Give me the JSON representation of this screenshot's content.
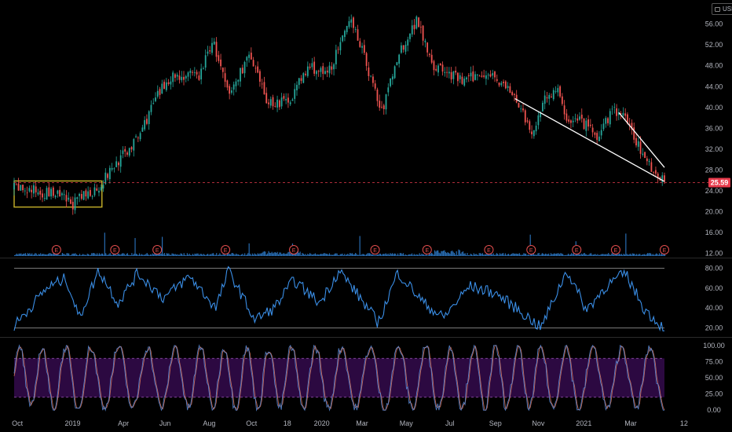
{
  "header": {
    "currency_label": "USD"
  },
  "colors": {
    "background": "#000000",
    "up_candle": "#26a69a",
    "down_candle": "#ef5350",
    "volume": "#2f7fd0",
    "rsi_line": "#3a8ee6",
    "stoch_k": "#5b8fe0",
    "stoch_d": "#e07a5f",
    "stoch_band": "#2e0a44",
    "price_line": "#e83b4c",
    "trendline": "#ffffff",
    "box": "#c8b22a",
    "earnings": "#e24d4d"
  },
  "chart_data": [
    {
      "type": "candlestick",
      "title": "",
      "y_axis_ticks": [
        12.0,
        16.0,
        20.0,
        24.0,
        28.0,
        32.0,
        36.0,
        40.0,
        44.0,
        48.0,
        52.0,
        56.0
      ],
      "ylim": [
        11.5,
        58.5
      ],
      "x_tick_labels": [
        "Oct",
        "2019",
        "Apr",
        "Jun",
        "Aug",
        "Oct",
        "18",
        "2020",
        "Mar",
        "May",
        "Jul",
        "Sep",
        "Nov",
        "2021",
        "Mar",
        "12"
      ],
      "last_price": 25.59,
      "last_price_label": "25.59",
      "earnings_label": "E",
      "earnings_marker_count": 12,
      "key_closes": [
        {
          "t": 0,
          "v": 24.5
        },
        {
          "t": 0.06,
          "v": 23.5
        },
        {
          "t": 0.09,
          "v": 21.5
        },
        {
          "t": 0.13,
          "v": 24.8
        },
        {
          "t": 0.155,
          "v": 29
        },
        {
          "t": 0.19,
          "v": 34
        },
        {
          "t": 0.215,
          "v": 41
        },
        {
          "t": 0.24,
          "v": 46
        },
        {
          "t": 0.285,
          "v": 46
        },
        {
          "t": 0.305,
          "v": 53
        },
        {
          "t": 0.33,
          "v": 42
        },
        {
          "t": 0.36,
          "v": 50
        },
        {
          "t": 0.39,
          "v": 41
        },
        {
          "t": 0.42,
          "v": 41
        },
        {
          "t": 0.455,
          "v": 48
        },
        {
          "t": 0.48,
          "v": 46
        },
        {
          "t": 0.52,
          "v": 57
        },
        {
          "t": 0.54,
          "v": 49
        },
        {
          "t": 0.565,
          "v": 39
        },
        {
          "t": 0.59,
          "v": 50
        },
        {
          "t": 0.62,
          "v": 57
        },
        {
          "t": 0.645,
          "v": 48
        },
        {
          "t": 0.69,
          "v": 45
        },
        {
          "t": 0.73,
          "v": 47
        },
        {
          "t": 0.755,
          "v": 44
        },
        {
          "t": 0.78,
          "v": 40
        },
        {
          "t": 0.795,
          "v": 34
        },
        {
          "t": 0.815,
          "v": 42
        },
        {
          "t": 0.835,
          "v": 43
        },
        {
          "t": 0.85,
          "v": 38
        },
        {
          "t": 0.875,
          "v": 37
        },
        {
          "t": 0.9,
          "v": 34
        },
        {
          "t": 0.92,
          "v": 40
        },
        {
          "t": 0.945,
          "v": 37
        },
        {
          "t": 0.97,
          "v": 30
        },
        {
          "t": 1,
          "v": 25.6
        }
      ],
      "trendlines": [
        {
          "from": {
            "t": 0.77,
            "v": 41.7
          },
          "to": {
            "t": 1,
            "v": 25.8
          }
        },
        {
          "from": {
            "t": 0.93,
            "v": 39
          },
          "to": {
            "t": 1,
            "v": 28.5
          }
        }
      ],
      "consolidation_box": {
        "t0": 0.0,
        "t1": 0.135,
        "v0": 20.9,
        "v1": 25.9
      }
    },
    {
      "type": "line",
      "title": "",
      "y_axis_ticks": [
        20.0,
        40.0,
        60.0,
        80.0
      ],
      "ylim": [
        14,
        86
      ],
      "reference_lines": [
        80,
        20
      ],
      "key_values": [
        {
          "t": 0,
          "v": 22
        },
        {
          "t": 0.05,
          "v": 60
        },
        {
          "t": 0.08,
          "v": 70
        },
        {
          "t": 0.1,
          "v": 30
        },
        {
          "t": 0.13,
          "v": 78
        },
        {
          "t": 0.16,
          "v": 45
        },
        {
          "t": 0.19,
          "v": 75
        },
        {
          "t": 0.23,
          "v": 50
        },
        {
          "t": 0.27,
          "v": 72
        },
        {
          "t": 0.31,
          "v": 40
        },
        {
          "t": 0.33,
          "v": 78
        },
        {
          "t": 0.37,
          "v": 28
        },
        {
          "t": 0.4,
          "v": 40
        },
        {
          "t": 0.43,
          "v": 68
        },
        {
          "t": 0.47,
          "v": 45
        },
        {
          "t": 0.5,
          "v": 78
        },
        {
          "t": 0.53,
          "v": 52
        },
        {
          "t": 0.56,
          "v": 25
        },
        {
          "t": 0.59,
          "v": 76
        },
        {
          "t": 0.63,
          "v": 45
        },
        {
          "t": 0.66,
          "v": 30
        },
        {
          "t": 0.7,
          "v": 62
        },
        {
          "t": 0.74,
          "v": 55
        },
        {
          "t": 0.78,
          "v": 36
        },
        {
          "t": 0.81,
          "v": 20
        },
        {
          "t": 0.85,
          "v": 78
        },
        {
          "t": 0.88,
          "v": 38
        },
        {
          "t": 0.91,
          "v": 62
        },
        {
          "t": 0.94,
          "v": 75
        },
        {
          "t": 0.97,
          "v": 38
        },
        {
          "t": 1,
          "v": 19
        }
      ]
    },
    {
      "type": "line",
      "title": "",
      "y_axis_ticks": [
        0.0,
        25.0,
        50.0,
        75.0,
        100.0
      ],
      "ylim": [
        -7,
        107
      ],
      "reference_lines": [
        80,
        20
      ],
      "oscillation_count": 26
    }
  ]
}
